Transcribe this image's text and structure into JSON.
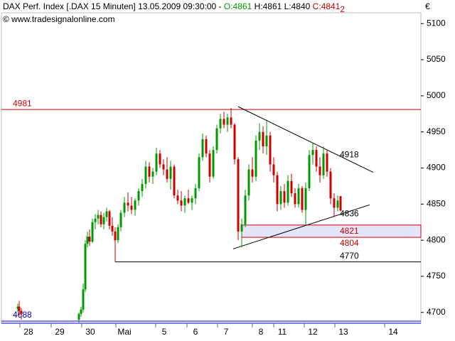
{
  "chart_data": {
    "type": "candlestick",
    "title": "DAX Perf. Index [.DAX  15 Minuten] 13.05.2009 09:30:00 -",
    "quote": {
      "open": "O:4861",
      "high_low": "H:4861 L:4840",
      "close": "C:4841",
      "marker": "2"
    },
    "credit": "© www.tradesignalonline.com",
    "currency": "€",
    "colors": {
      "up": "#009900",
      "down": "#cc0000"
    },
    "x": [
      5.75,
      6.25,
      7,
      27.25,
      28,
      28.75,
      29.5,
      30.25,
      31,
      32,
      33,
      34,
      35,
      36,
      37,
      38,
      39,
      40,
      41,
      42,
      43.25,
      44.5,
      45.75,
      47,
      48.25,
      49.5,
      50.75,
      52,
      53.25,
      54.5,
      55.75,
      57,
      58.25,
      59.5,
      60.75,
      62,
      63.25,
      64.5,
      65.75,
      67,
      68.25,
      69.5,
      70.75,
      72,
      73.25,
      74.5,
      75.75,
      77,
      78.25,
      79.5,
      80.75,
      82,
      83.25,
      84.5,
      85.75,
      87,
      88.25,
      89.5,
      90.75,
      92,
      93.25,
      94.5,
      95.75,
      97,
      98.25,
      99.5,
      100.75,
      102,
      103.25,
      104.5,
      105.75,
      107,
      108.25,
      109.5,
      110.75,
      112,
      113.25,
      114.5,
      115.75,
      117,
      118.25,
      119.25
    ],
    "open": [
      4705,
      4708,
      4702,
      4690,
      4698,
      4704,
      4732,
      4795,
      4805,
      4798,
      4825,
      4830,
      4835,
      4822,
      4832,
      4840,
      4820,
      4812,
      4800,
      4818,
      4838,
      4852,
      4848,
      4842,
      4855,
      4868,
      4878,
      4902,
      4888,
      4895,
      4920,
      4905,
      4898,
      4885,
      4902,
      4862,
      4855,
      4848,
      4858,
      4852,
      4858,
      4872,
      4915,
      4940,
      4920,
      4888,
      4925,
      4955,
      4968,
      4960,
      4970,
      4960,
      4912,
      4812,
      4822,
      4862,
      4898,
      4888,
      4938,
      4950,
      4930,
      4945,
      4905,
      4890,
      4850,
      4868,
      4852,
      4882,
      4865,
      4850,
      4872,
      4842,
      4872,
      4918,
      4925,
      4902,
      4890,
      4920,
      4895,
      4858,
      4845,
      4861
    ],
    "high": [
      4712,
      4716,
      4706,
      4700,
      4708,
      4740,
      4800,
      4812,
      4815,
      4830,
      4836,
      4842,
      4840,
      4838,
      4845,
      4842,
      4832,
      4818,
      4822,
      4842,
      4860,
      4866,
      4860,
      4858,
      4872,
      4885,
      4910,
      4908,
      4900,
      4928,
      4925,
      4912,
      4915,
      4910,
      4905,
      4870,
      4868,
      4862,
      4870,
      4862,
      4878,
      4920,
      4948,
      4945,
      4925,
      4930,
      4960,
      4975,
      4978,
      4975,
      4983,
      4962,
      4915,
      4830,
      4870,
      4905,
      4915,
      4945,
      4962,
      4958,
      4965,
      4950,
      4915,
      4895,
      4875,
      4878,
      4890,
      4892,
      4872,
      4878,
      4875,
      4880,
      4925,
      4935,
      4930,
      4915,
      4930,
      4925,
      4900,
      4865,
      4862,
      4861
    ],
    "low": [
      4700,
      4696,
      4690,
      4686,
      4694,
      4700,
      4728,
      4790,
      4792,
      4796,
      4815,
      4822,
      4818,
      4815,
      4826,
      4815,
      4806,
      4770,
      4796,
      4812,
      4832,
      4840,
      4836,
      4834,
      4848,
      4860,
      4872,
      4880,
      4878,
      4890,
      4900,
      4890,
      4880,
      4870,
      4858,
      4850,
      4840,
      4838,
      4850,
      4842,
      4850,
      4868,
      4910,
      4915,
      4880,
      4885,
      4920,
      4948,
      4955,
      4950,
      4955,
      4905,
      4800,
      4790,
      4818,
      4855,
      4880,
      4882,
      4925,
      4920,
      4918,
      4895,
      4880,
      4840,
      4842,
      4845,
      4848,
      4860,
      4845,
      4845,
      4838,
      4820,
      4868,
      4905,
      4895,
      4880,
      4885,
      4888,
      4850,
      4832,
      4840,
      4840
    ],
    "close": [
      4708,
      4702,
      4698,
      4698,
      4704,
      4732,
      4795,
      4805,
      4798,
      4825,
      4830,
      4835,
      4822,
      4832,
      4840,
      4820,
      4812,
      4800,
      4818,
      4838,
      4852,
      4848,
      4842,
      4855,
      4868,
      4878,
      4902,
      4888,
      4895,
      4920,
      4905,
      4898,
      4885,
      4902,
      4862,
      4855,
      4848,
      4858,
      4852,
      4858,
      4872,
      4915,
      4940,
      4920,
      4888,
      4925,
      4955,
      4968,
      4960,
      4970,
      4960,
      4912,
      4812,
      4822,
      4862,
      4898,
      4888,
      4938,
      4950,
      4930,
      4945,
      4905,
      4890,
      4850,
      4868,
      4852,
      4882,
      4865,
      4850,
      4872,
      4842,
      4872,
      4918,
      4925,
      4902,
      4890,
      4920,
      4895,
      4858,
      4845,
      4855,
      4841
    ],
    "xlim": [
      0,
      147.5
    ],
    "xticks": [
      {
        "value": 9.5,
        "label": "28"
      },
      {
        "value": 20.5,
        "label": "29"
      },
      {
        "value": 31.25,
        "label": "30"
      },
      {
        "value": 43.25,
        "label": "Mai"
      },
      {
        "value": 57.25,
        "label": "5"
      },
      {
        "value": 68.25,
        "label": "6"
      },
      {
        "value": 79,
        "label": "7"
      },
      {
        "value": 91.25,
        "label": "8"
      },
      {
        "value": 98.75,
        "label": "11"
      },
      {
        "value": 109.5,
        "label": "12"
      },
      {
        "value": 120.25,
        "label": "13"
      },
      {
        "value": 137.75,
        "label": "14"
      }
    ],
    "ylim": [
      4685,
      5115
    ],
    "yticks": [
      4700,
      4750,
      4800,
      4850,
      4900,
      4950,
      5000,
      5050,
      5100
    ],
    "levels": [
      {
        "value": 4981,
        "color": "#cc0000",
        "line": true,
        "start": 0,
        "side": "left"
      },
      {
        "value": 4918,
        "color": "#000000",
        "line": false,
        "start": 119,
        "side": "right"
      },
      {
        "value": 4836,
        "color": "#000000",
        "line": false,
        "start": 119,
        "side": "right"
      },
      {
        "value": 4770,
        "color": "#000000",
        "line": true,
        "start": 40,
        "side": "right"
      },
      {
        "value": 4688,
        "color": "#0000cc",
        "line": true,
        "start": 0,
        "side": "left"
      }
    ],
    "zone": {
      "low": 4804,
      "high": 4821,
      "start": 84.5,
      "fill": "#e4e4fa",
      "color": "#cc0000"
    },
    "trendlines": [
      {
        "x": [
          83.25,
          130.75
        ],
        "y": [
          4985,
          4894
        ]
      },
      {
        "x": [
          81.5,
          129.5
        ],
        "y": [
          4788,
          4849
        ]
      }
    ]
  }
}
